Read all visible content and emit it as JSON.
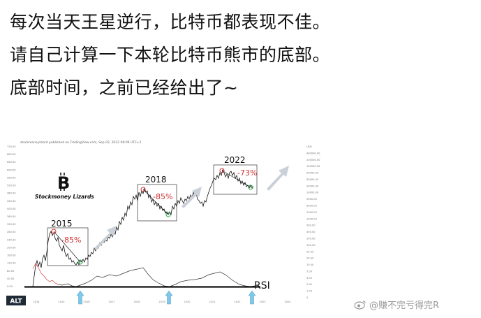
{
  "post": {
    "line1": "每次当天王星逆行，比特币都表现不佳。",
    "line2": "请自己计算一下本轮比特币熊市的底部。",
    "line3": "底部时间，之前已经给出了~"
  },
  "chart": {
    "header_text": "stockmoneylizard published on TradingView.com, Sep 02, 2022 08:09 UTC+2",
    "brand": "Stockmoney Lizards",
    "logo_symbol": "B",
    "annotations": [
      {
        "year": "2015",
        "drop": "-85%"
      },
      {
        "year": "2018",
        "drop": "-85%"
      },
      {
        "year": "2022",
        "drop": "-73%"
      }
    ],
    "rsi_label": "RSI",
    "alt_badge": "ALT",
    "left_axis_ticks": [
      "720.00",
      "680.00",
      "640.00",
      "600.00",
      "560.00",
      "520.00",
      "480.00",
      "440.00",
      "400.00",
      "360.00",
      "320.00",
      "280.00",
      "240.00",
      "200.00",
      "160.00",
      "120.00",
      "80.00",
      "40.00",
      "0.00"
    ],
    "right_axis_ticks": [
      "USD",
      "400000.00",
      "200000.00",
      "100000.00",
      "50000.00",
      "30000.00",
      "20000.00",
      "10000.00",
      "5000.00",
      "3000.00",
      "2000.00",
      "1000.00",
      "500.00",
      "300.00",
      "200.00",
      "100.00",
      "50.00",
      "20.00",
      "10.00",
      "5.00",
      "3.00",
      "2.00",
      "1.00",
      "0"
    ],
    "x_axis_ticks": [
      "2014",
      "2015",
      "2016",
      "2017",
      "2018",
      "2019",
      "2020",
      "2021",
      "2022",
      "2023",
      "2024"
    ],
    "colors": {
      "price": "#111111",
      "marker_red": "#e03030",
      "marker_green": "#2fa84f",
      "arrow": "#c9d0d8",
      "rsi": "#333333",
      "rsi_red": "#d84040",
      "cyan_arrow": "#7fc8e8",
      "logo": "#111111"
    }
  },
  "watermark": {
    "text": "@赚不完亏得完R",
    "icon": "weibo-icon"
  }
}
